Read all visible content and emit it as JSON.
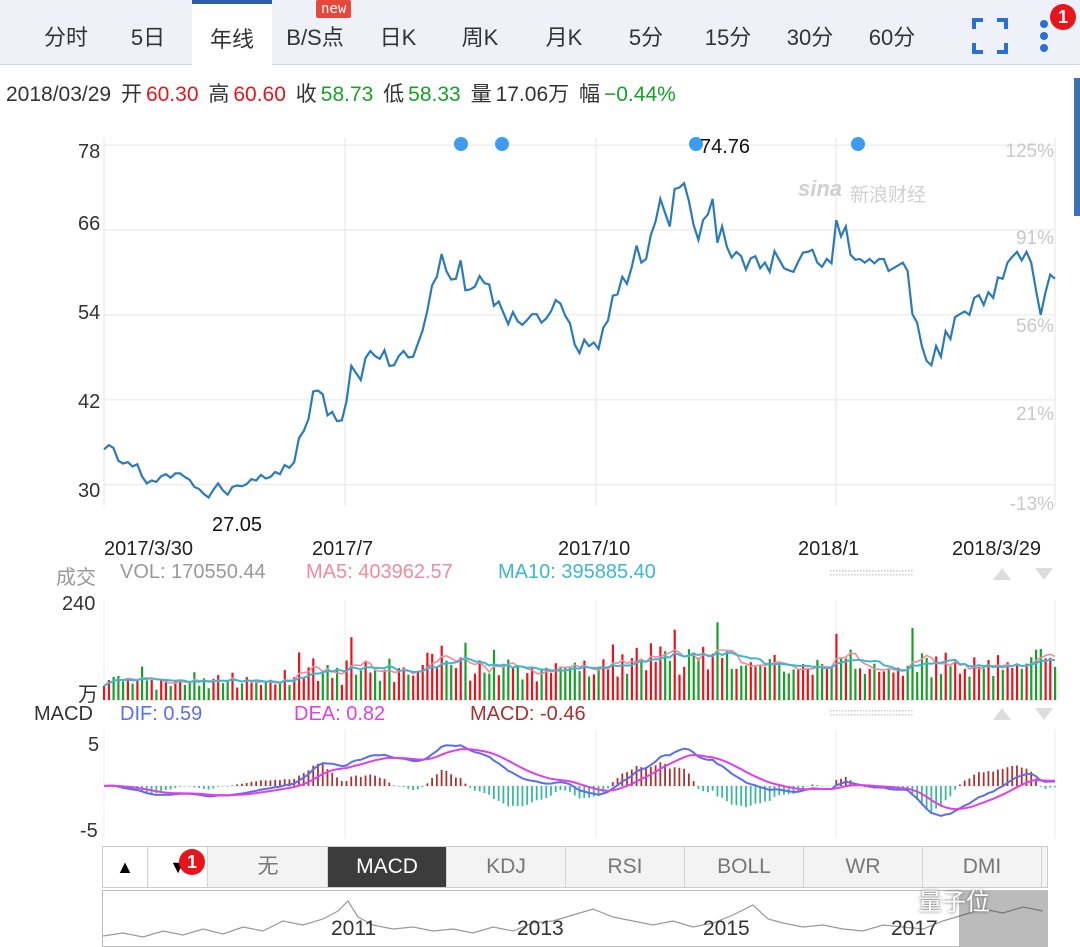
{
  "tabs": [
    {
      "label": "分时"
    },
    {
      "label": "5日"
    },
    {
      "label": "年线"
    },
    {
      "label": "B/S点"
    },
    {
      "label": "日K"
    },
    {
      "label": "周K"
    },
    {
      "label": "月K"
    },
    {
      "label": "5分"
    },
    {
      "label": "15分"
    },
    {
      "label": "30分"
    },
    {
      "label": "60分"
    }
  ],
  "active_tab": "年线",
  "new_badge": "new",
  "menu_badge": "1",
  "info": {
    "date": "2018/03/29",
    "open_label": "开",
    "open": "60.30",
    "high_label": "高",
    "high": "60.60",
    "close_label": "收",
    "close": "58.73",
    "low_label": "低",
    "low": "58.33",
    "vol_label": "量",
    "vol": "17.06万",
    "chg_label": "幅",
    "chg": "−0.44%"
  },
  "colors": {
    "up": "#e8141c",
    "down": "#18a028",
    "price_line": "#2b7bb9",
    "dif": "#5b6ef0",
    "dea": "#e040e8",
    "macd_pos": "#a83232",
    "macd_neg": "#3cb898",
    "ma5": "#f08aa0",
    "ma10": "#3fb6d0",
    "dot": "#3d9bf0"
  },
  "watermark": "新浪财经",
  "sina_logo": "sina",
  "chart_data": [
    {
      "type": "line",
      "x_labels": [
        "2017/3/30",
        "2017/7",
        "2017/10",
        "2018/1",
        "2018/3/29"
      ],
      "y_ticks": [
        78,
        66,
        54,
        42,
        30
      ],
      "ylim": [
        27,
        79
      ],
      "pct_ticks": [
        "125%",
        "91%",
        "56%",
        "21%",
        "-13%"
      ],
      "max_label": "74.76",
      "min_label": "27.05",
      "series": [
        {
          "values": [
            35,
            35.6,
            35.2,
            33.4,
            33,
            33.2,
            32.6,
            32.9,
            31.2,
            30.2,
            30.6,
            30.4,
            31.2,
            31.5,
            31,
            31.6,
            31.6,
            31.1,
            30.7,
            29.7,
            29.4,
            28.7,
            28.2,
            29.3,
            30.2,
            29.2,
            28.6,
            29.7,
            29.9,
            29.8,
            30.1,
            30.8,
            30.6,
            31.4,
            30.9,
            31.1,
            31.8,
            31.5,
            32.8,
            32.4,
            33.2,
            36.6,
            37.6,
            39.3,
            43.2,
            43.3,
            42.8,
            39.8,
            40.3,
            39,
            39.1,
            41.8,
            46.8,
            45.8,
            44.8,
            47.9,
            48.9,
            48.2,
            47.8,
            49,
            46.8,
            46.9,
            48.2,
            48.9,
            48,
            48.1,
            49.9,
            51.8,
            54.6,
            58.2,
            59.4,
            62.6,
            60.2,
            59,
            59.1,
            61.7,
            57.5,
            57.6,
            58,
            59.5,
            58.5,
            58.3,
            55.3,
            55.9,
            54.3,
            52.7,
            54.4,
            53.1,
            52.6,
            53.3,
            54.1,
            54.1,
            52.9,
            53.5,
            54.5,
            56.1,
            55.6,
            53.9,
            52.8,
            49.8,
            48.6,
            50.5,
            49.6,
            50.1,
            49.2,
            52.2,
            53.2,
            56.7,
            56.9,
            59.4,
            58.4,
            60.8,
            63.8,
            61.4,
            61.9,
            65.3,
            67.2,
            70.4,
            68.4,
            66.5,
            71.8,
            72,
            72.6,
            70.1,
            66.7,
            64.6,
            67.4,
            68.2,
            70.4,
            64.2,
            66.5,
            63.6,
            62.1,
            62.9,
            62.3,
            60.4,
            62,
            62.3,
            60.6,
            61.4,
            60.1,
            63,
            61.8,
            60.6,
            60.3,
            60.1,
            61.5,
            62.8,
            62.9,
            63.2,
            61.4,
            60.8,
            61.9,
            61.3,
            67.4,
            65.1,
            66.5,
            62.5,
            61.8,
            61.9,
            61.4,
            61.9,
            61.3,
            61.9,
            61.9,
            60.2,
            60.6,
            61,
            61.4,
            60.2,
            54.1,
            52.9,
            49.6,
            47.5,
            46.9,
            49.6,
            48.1,
            51.7,
            50.6,
            53.7,
            54.1,
            54.5,
            54,
            56.4,
            56.8,
            55.4,
            57.2,
            56.4,
            59.3,
            59.1,
            61.4,
            62.2,
            62.9,
            61.7,
            62.9,
            61.4,
            57.5,
            54,
            57.2,
            59.7,
            59.1
          ]
        }
      ]
    },
    {
      "type": "bar",
      "title": "成交",
      "vol_label": "VOL: 170550.44",
      "ma5_label": "MA5: 403962.57",
      "ma10_label": "MA10: 395885.40",
      "y_ticks": [
        "240",
        "万"
      ],
      "ylim": [
        0,
        250
      ]
    },
    {
      "type": "line",
      "title": "MACD",
      "dif_label": "DIF: 0.59",
      "dea_label": "DEA: 0.82",
      "macd_label": "MACD: -0.46",
      "y_ticks": [
        5,
        -5
      ],
      "ylim": [
        -6.5,
        7
      ]
    }
  ],
  "indicators": {
    "up_arrow": "▲",
    "down_arrow": "▼",
    "badge": "1",
    "buttons": [
      "无",
      "MACD",
      "KDJ",
      "RSI",
      "BOLL",
      "WR",
      "DMI"
    ],
    "active": "MACD"
  },
  "overview_years": [
    "2011",
    "2013",
    "2015",
    "2017"
  ],
  "qbit_watermark": "量子位"
}
